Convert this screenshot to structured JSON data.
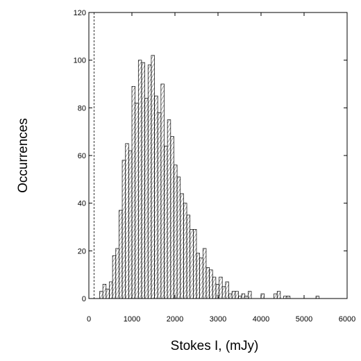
{
  "chart_data": {
    "type": "bar",
    "title": "",
    "xlabel": "Stokes I, (mJy)",
    "ylabel": "Occurrences",
    "xlim": [
      0,
      6000
    ],
    "ylim": [
      0,
      120
    ],
    "xticks": [
      0,
      1000,
      2000,
      3000,
      4000,
      5000,
      6000
    ],
    "yticks": [
      0,
      20,
      40,
      60,
      80,
      100,
      120
    ],
    "xtick_labels": [
      "0",
      "1000",
      "2000",
      "3000",
      "4000",
      "5000",
      "6000"
    ],
    "ytick_labels": [
      "0",
      "20",
      "40",
      "60",
      "80",
      "100",
      "120"
    ],
    "bin_width": 75,
    "bin_start": 250,
    "values": [
      3,
      6,
      4,
      7,
      18,
      21,
      37,
      58,
      65,
      62,
      89,
      82,
      100,
      99,
      84,
      98,
      102,
      85,
      78,
      90,
      64,
      75,
      68,
      56,
      51,
      44,
      40,
      35,
      29,
      29,
      19,
      17,
      21,
      13,
      12,
      9,
      6,
      9,
      5,
      7,
      2,
      3,
      3,
      1,
      2,
      1,
      3,
      0,
      0,
      0,
      2,
      0,
      0,
      0,
      2,
      3,
      0,
      1,
      1,
      0,
      0,
      0,
      0,
      0,
      0,
      0,
      0,
      1
    ],
    "reference_line_x": 120,
    "grid": false,
    "legend": "none",
    "colors": {
      "bar_fill": "#ffffff",
      "bar_stroke": "#000000",
      "hatch": "#000000"
    }
  }
}
